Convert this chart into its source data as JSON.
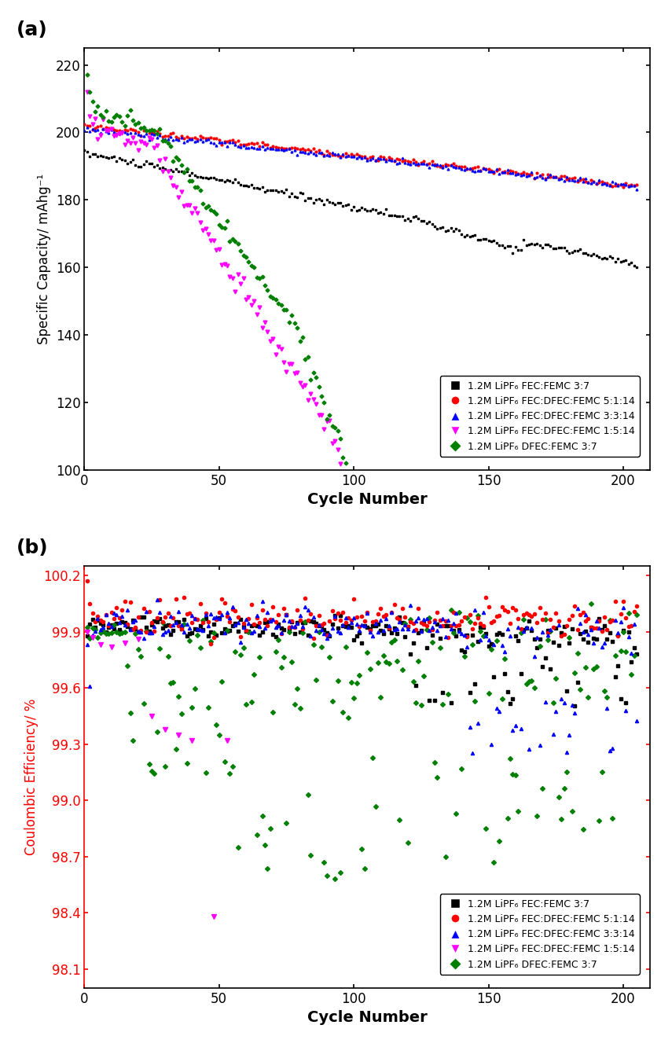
{
  "panel_a": {
    "title": "(a)",
    "xlabel": "Cycle Number",
    "ylabel": "Specific Capacity/ mAhg⁻¹",
    "xlim": [
      0,
      210
    ],
    "ylim": [
      100,
      225
    ],
    "yticks": [
      100,
      120,
      140,
      160,
      180,
      200,
      220
    ],
    "xticks": [
      0,
      50,
      100,
      150,
      200
    ]
  },
  "panel_b": {
    "title": "(b)",
    "xlabel": "Cycle Number",
    "ylabel": "Coulombic Efficiency/ %",
    "xlim": [
      0,
      210
    ],
    "ylim": [
      98.0,
      100.25
    ],
    "yticks": [
      98.1,
      98.4,
      98.7,
      99.0,
      99.3,
      99.6,
      99.9,
      100.2
    ],
    "xticks": [
      0,
      50,
      100,
      150,
      200
    ]
  },
  "legend_labels": [
    "1.2M LiPF₆ FEC:FEMC 3:7",
    "1.2M LiPF₆ FEC:DFEC:FEMC 5:1:14",
    "1.2M LiPF₆ FEC:DFEC:FEMC 3:3:14",
    "1.2M LiPF₆ FEC:DFEC:FEMC 1:5:14",
    "1.2M LiPF₆ DFEC:FEMC 3:7"
  ],
  "colors": [
    "#000000",
    "#ff0000",
    "#0000ff",
    "#ff00ff",
    "#008000"
  ],
  "markers": [
    "s",
    "o",
    "^",
    "v",
    "D"
  ]
}
